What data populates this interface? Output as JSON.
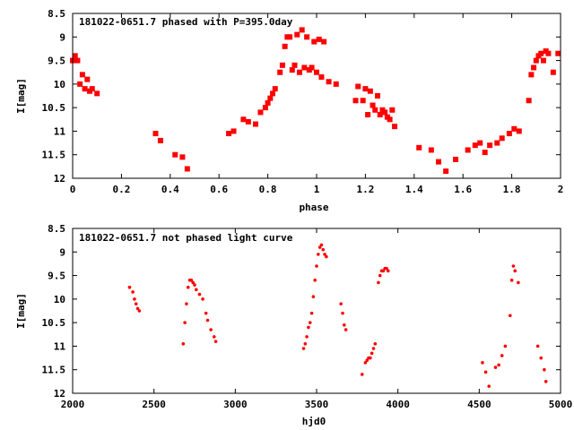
{
  "chart_data": [
    {
      "type": "scatter",
      "title": "181022-0651.7 phased with P=395.0day",
      "xlabel": "phase",
      "ylabel": "I[mag]",
      "xlim": [
        0,
        2
      ],
      "ylim": [
        8.5,
        12
      ],
      "y_inverted": true,
      "xticks": [
        0,
        0.2,
        0.4,
        0.6,
        0.8,
        1,
        1.2,
        1.4,
        1.6,
        1.8,
        2
      ],
      "xtick_labels": [
        "0",
        "0.2",
        "0.4",
        "0.6",
        "0.8",
        "1",
        "1.2",
        "1.4",
        "1.6",
        "1.8",
        "2"
      ],
      "yticks": [
        8.5,
        9,
        9.5,
        10,
        10.5,
        11,
        11.5,
        12
      ],
      "ytick_labels": [
        "8.5",
        "9",
        "9.5",
        "10",
        "10.5",
        "11",
        "11.5",
        "12"
      ],
      "marker_color": "#ff0000",
      "marker_style": "filled-square",
      "grid": false,
      "legend": "none",
      "series": [
        {
          "x": [
            0.0,
            0.01,
            0.02,
            0.03,
            0.04,
            0.05,
            0.06,
            0.07,
            0.08,
            0.1,
            0.34,
            0.36,
            0.42,
            0.45,
            0.47,
            0.64,
            0.66,
            0.7,
            0.72,
            0.75,
            0.77,
            0.79,
            0.8,
            0.81,
            0.82,
            0.83,
            0.85,
            0.86,
            0.87,
            0.88,
            0.89,
            0.9,
            0.91,
            0.92,
            0.93,
            0.94,
            0.95,
            0.96,
            0.97,
            0.98,
            0.99,
            1.0,
            1.01,
            1.02,
            1.03,
            1.05,
            1.08,
            1.16,
            1.17,
            1.19,
            1.2,
            1.21,
            1.22,
            1.23,
            1.24,
            1.25,
            1.26,
            1.27,
            1.28,
            1.29,
            1.3,
            1.31,
            1.32,
            1.42,
            1.47,
            1.5,
            1.53,
            1.57,
            1.62,
            1.65,
            1.67,
            1.69,
            1.71,
            1.74,
            1.76,
            1.79,
            1.81,
            1.83,
            1.87,
            1.88,
            1.89,
            1.9,
            1.91,
            1.92,
            1.93,
            1.94,
            1.95,
            1.97,
            1.99
          ],
          "y": [
            9.5,
            9.4,
            9.5,
            10.0,
            9.8,
            10.1,
            9.9,
            10.15,
            10.1,
            10.2,
            11.05,
            11.2,
            11.5,
            11.55,
            11.8,
            11.05,
            11.0,
            10.75,
            10.8,
            10.85,
            10.6,
            10.5,
            10.4,
            10.3,
            10.2,
            10.1,
            9.75,
            9.6,
            9.2,
            9.0,
            9.0,
            9.7,
            9.6,
            8.95,
            9.75,
            8.85,
            9.65,
            9.0,
            9.7,
            9.65,
            9.1,
            9.75,
            9.05,
            9.85,
            9.1,
            9.95,
            10.0,
            10.35,
            10.05,
            10.35,
            10.1,
            10.65,
            10.15,
            10.45,
            10.55,
            10.25,
            10.65,
            10.55,
            10.6,
            10.7,
            10.75,
            10.55,
            10.9,
            11.35,
            11.4,
            11.65,
            11.85,
            11.6,
            11.4,
            11.3,
            11.25,
            11.45,
            11.3,
            11.25,
            11.15,
            11.05,
            10.95,
            11.0,
            10.35,
            9.8,
            9.65,
            9.5,
            9.4,
            9.35,
            9.5,
            9.3,
            9.35,
            9.75,
            9.35
          ]
        }
      ]
    },
    {
      "type": "scatter",
      "title": "181022-0651.7 not phased light curve",
      "xlabel": "hjd0",
      "ylabel": "I[mag]",
      "xlim": [
        2000,
        5000
      ],
      "ylim": [
        8.5,
        12
      ],
      "y_inverted": true,
      "xticks": [
        2000,
        2500,
        3000,
        3500,
        4000,
        4500,
        5000
      ],
      "xtick_labels": [
        "2000",
        "2500",
        "3000",
        "3500",
        "4000",
        "4500",
        "5000"
      ],
      "yticks": [
        8.5,
        9,
        9.5,
        10,
        10.5,
        11,
        11.5,
        12
      ],
      "ytick_labels": [
        "8.5",
        "9",
        "9.5",
        "10",
        "10.5",
        "11",
        "11.5",
        "12"
      ],
      "marker_color": "#ff0000",
      "marker_style": "small-dot",
      "grid": false,
      "legend": "none",
      "series": [
        {
          "x": [
            2350,
            2370,
            2380,
            2390,
            2400,
            2410,
            2680,
            2690,
            2700,
            2710,
            2720,
            2730,
            2740,
            2750,
            2760,
            2780,
            2800,
            2820,
            2830,
            2850,
            2870,
            2880,
            3420,
            3430,
            3440,
            3450,
            3460,
            3470,
            3480,
            3490,
            3500,
            3510,
            3520,
            3530,
            3540,
            3550,
            3560,
            3650,
            3660,
            3670,
            3680,
            3780,
            3800,
            3810,
            3820,
            3830,
            3840,
            3850,
            3860,
            3880,
            3890,
            3900,
            3910,
            3920,
            3930,
            3940,
            4520,
            4540,
            4560,
            4600,
            4620,
            4640,
            4660,
            4690,
            4700,
            4710,
            4720,
            4740,
            4860,
            4880,
            4900,
            4910
          ],
          "y": [
            9.75,
            9.85,
            10.0,
            10.1,
            10.2,
            10.25,
            10.95,
            10.5,
            10.1,
            9.75,
            9.6,
            9.6,
            9.65,
            9.7,
            9.8,
            9.9,
            10.0,
            10.3,
            10.45,
            10.65,
            10.8,
            10.9,
            11.05,
            10.95,
            10.8,
            10.6,
            10.5,
            10.3,
            9.95,
            9.6,
            9.3,
            9.05,
            8.9,
            8.85,
            8.95,
            9.05,
            9.1,
            10.1,
            10.3,
            10.55,
            10.65,
            11.6,
            11.35,
            11.3,
            11.25,
            11.25,
            11.15,
            11.05,
            10.95,
            9.65,
            9.5,
            9.4,
            9.4,
            9.35,
            9.35,
            9.4,
            11.35,
            11.55,
            11.85,
            11.45,
            11.4,
            11.2,
            11.0,
            10.35,
            9.6,
            9.3,
            9.4,
            9.65,
            11.0,
            11.25,
            11.5,
            11.75
          ]
        }
      ]
    }
  ]
}
